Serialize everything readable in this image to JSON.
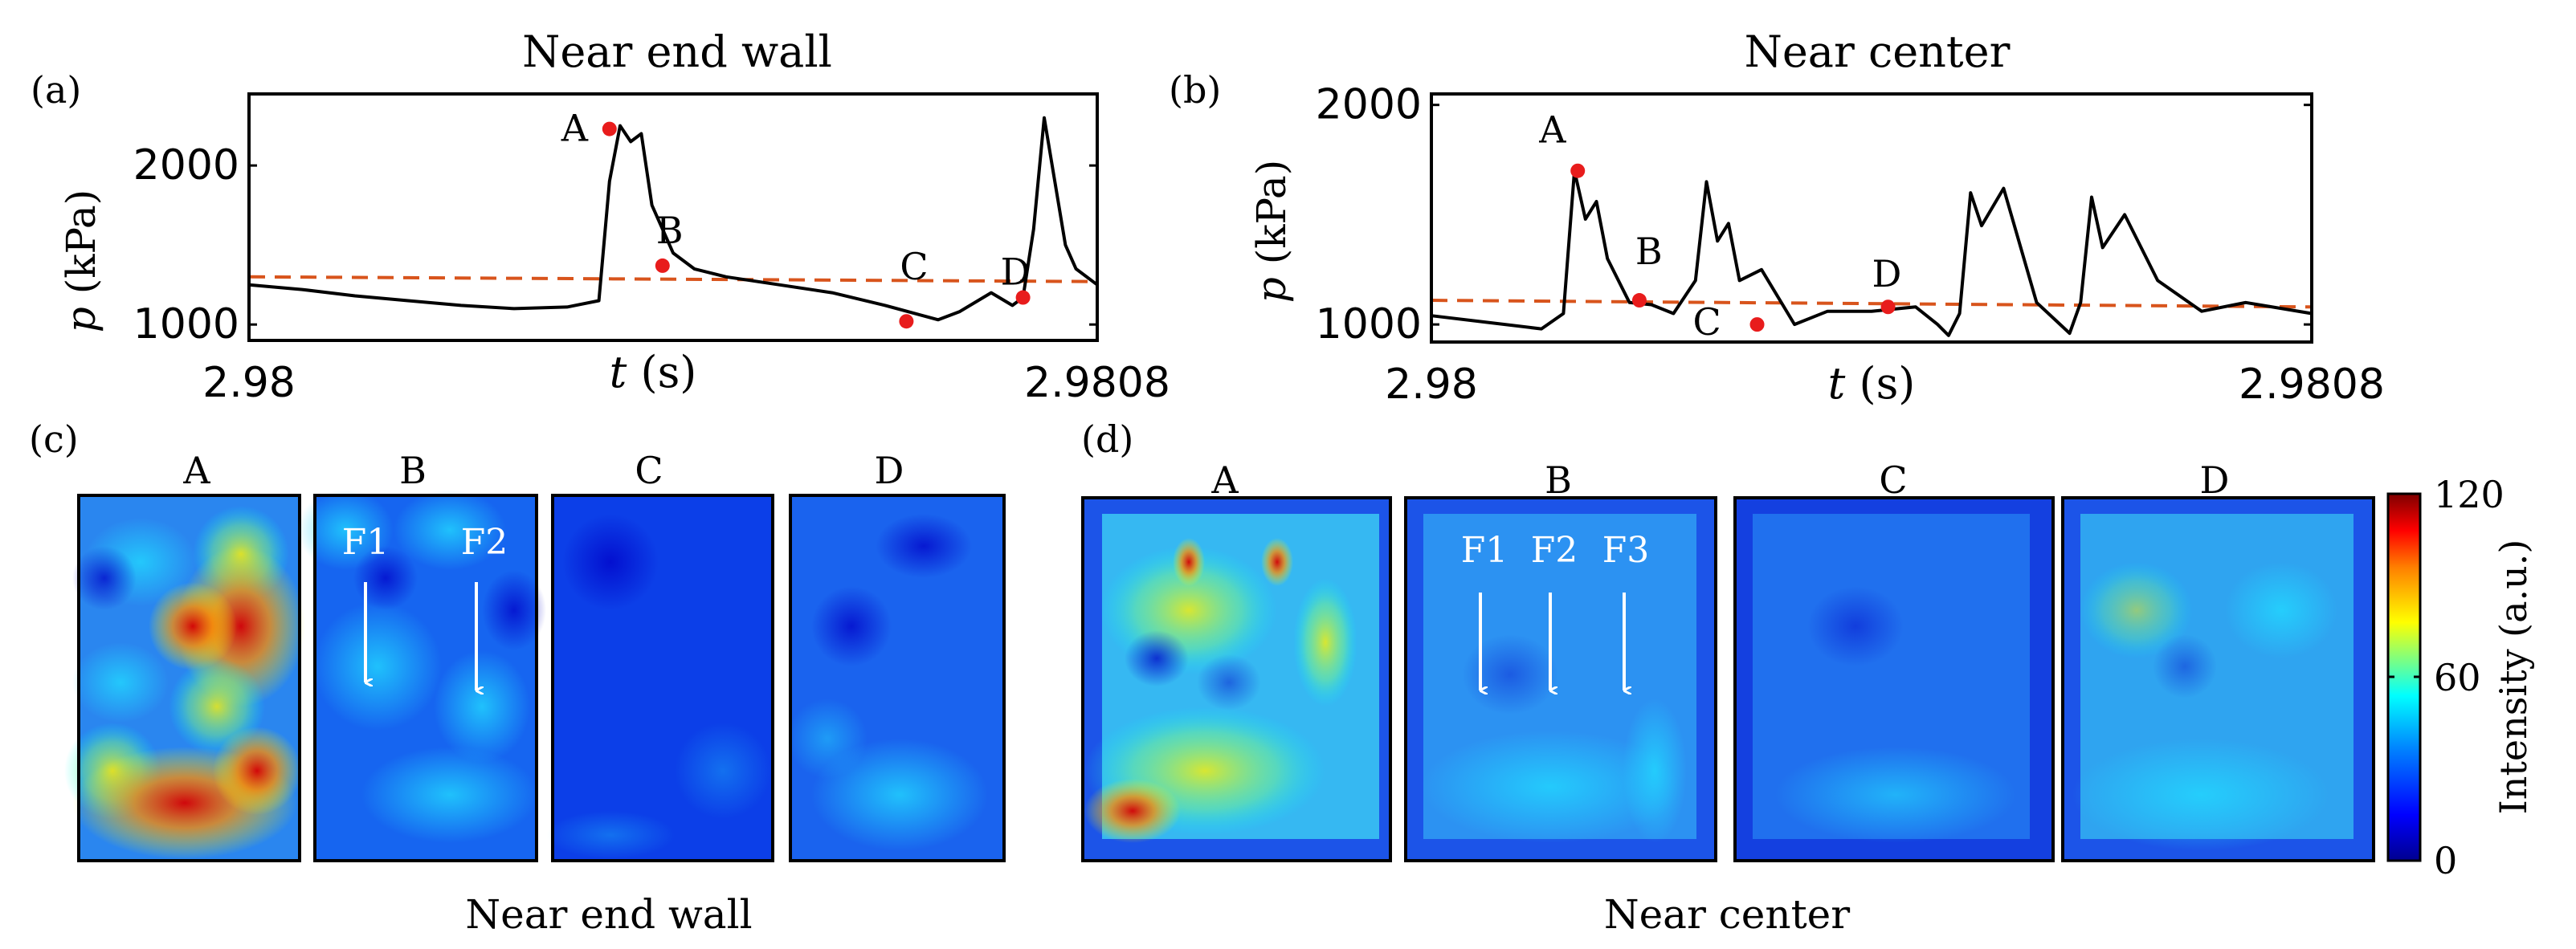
{
  "chart_data": [
    {
      "type": "line",
      "panel_label": "(a)",
      "title": "Near end wall",
      "xlabel_var": "t",
      "xlabel_unit": "(s)",
      "ylabel_var": "p",
      "ylabel_unit": "(kPa)",
      "xlim": [
        2.98,
        2.9808
      ],
      "ylim": [
        900,
        2450
      ],
      "xtick_labels": [
        "2.98",
        "2.9808"
      ],
      "ytick_values": [
        1000,
        2000
      ],
      "ytick_labels": [
        "1000",
        "2000"
      ],
      "trend": {
        "name": "mean",
        "x": [
          2.98,
          2.9808
        ],
        "y": [
          1300,
          1270
        ]
      },
      "series": [
        {
          "name": "pressure",
          "x": [
            2.98,
            2.98005,
            2.9801,
            2.98015,
            2.9802,
            2.98025,
            2.9803,
            2.98033,
            2.98034,
            2.98035,
            2.98036,
            2.98037,
            2.98038,
            2.9804,
            2.98042,
            2.98045,
            2.9805,
            2.98055,
            2.9806,
            2.98065,
            2.98067,
            2.9807,
            2.98072,
            2.98073,
            2.98074,
            2.98075,
            2.98076,
            2.98077,
            2.98078,
            2.9808
          ],
          "y": [
            1250,
            1220,
            1180,
            1150,
            1120,
            1100,
            1110,
            1150,
            1900,
            2250,
            2150,
            2200,
            1750,
            1450,
            1350,
            1300,
            1250,
            1200,
            1120,
            1030,
            1080,
            1200,
            1120,
            1170,
            1600,
            2300,
            1900,
            1500,
            1350,
            1250
          ]
        },
        {
          "name": "markers",
          "points": [
            {
              "label": "A",
              "x": 2.98034,
              "y": 2230
            },
            {
              "label": "B",
              "x": 2.98039,
              "y": 1370
            },
            {
              "label": "C",
              "x": 2.98062,
              "y": 1020
            },
            {
              "label": "D",
              "x": 2.98073,
              "y": 1170
            }
          ]
        }
      ]
    },
    {
      "type": "line",
      "panel_label": "(b)",
      "title": "Near center",
      "xlabel_var": "t",
      "xlabel_unit": "(s)",
      "ylabel_var": "p",
      "ylabel_unit": "(kPa)",
      "xlim": [
        2.98,
        2.9808
      ],
      "ylim": [
        920,
        2050
      ],
      "xtick_labels": [
        "2.98",
        "2.9808"
      ],
      "ytick_values": [
        1000,
        2000
      ],
      "ytick_labels": [
        "1000",
        "2000"
      ],
      "trend": {
        "name": "mean",
        "x": [
          2.98,
          2.9808
        ],
        "y": [
          1110,
          1080
        ]
      },
      "series": [
        {
          "name": "pressure",
          "x": [
            2.98,
            2.98005,
            2.9801,
            2.98012,
            2.98013,
            2.98014,
            2.98015,
            2.98016,
            2.98018,
            2.9802,
            2.98022,
            2.98024,
            2.98025,
            2.98026,
            2.98027,
            2.98028,
            2.9803,
            2.98033,
            2.98036,
            2.9804,
            2.98044,
            2.98046,
            2.98047,
            2.98048,
            2.98049,
            2.9805,
            2.98052,
            2.98055,
            2.98058,
            2.98059,
            2.9806,
            2.98061,
            2.98063,
            2.98066,
            2.9807,
            2.98074,
            2.9808
          ],
          "y": [
            1040,
            1010,
            980,
            1050,
            1700,
            1480,
            1560,
            1300,
            1100,
            1090,
            1050,
            1200,
            1650,
            1380,
            1460,
            1200,
            1250,
            1000,
            1060,
            1060,
            1080,
            1000,
            950,
            1050,
            1600,
            1450,
            1620,
            1100,
            960,
            1100,
            1580,
            1350,
            1500,
            1200,
            1060,
            1100,
            1050
          ]
        },
        {
          "name": "markers",
          "points": [
            {
              "label": "A",
              "x": 2.980133,
              "y": 1700
            },
            {
              "label": "B",
              "x": 2.980189,
              "y": 1110
            },
            {
              "label": "C",
              "x": 2.980296,
              "y": 1000
            },
            {
              "label": "D",
              "x": 2.980415,
              "y": 1080
            }
          ]
        }
      ]
    },
    {
      "type": "heatmap",
      "panel_label": "(c)",
      "caption": "Near end wall",
      "frames": [
        "A",
        "B",
        "C",
        "D"
      ],
      "annotations": [
        {
          "frame": "B",
          "labels": [
            "F1",
            "F2"
          ]
        }
      ]
    },
    {
      "type": "heatmap",
      "panel_label": "(d)",
      "caption": "Near center",
      "frames": [
        "A",
        "B",
        "C",
        "D"
      ],
      "annotations": [
        {
          "frame": "B",
          "labels": [
            "F1",
            "F2",
            "F3"
          ]
        }
      ]
    },
    {
      "type": "colorbar",
      "label": "Intensity (a.u.)",
      "range": [
        0,
        120
      ],
      "tick_labels": [
        "120",
        "60",
        "0"
      ]
    }
  ],
  "colors": {
    "line": "#000000",
    "marker": "#e81c1c",
    "trend": "#d8541c",
    "colormap": [
      "#00008f",
      "#0000ff",
      "#007fff",
      "#00ffff",
      "#7fff7f",
      "#ffff00",
      "#ff7f00",
      "#ff0000",
      "#7f0000"
    ]
  }
}
